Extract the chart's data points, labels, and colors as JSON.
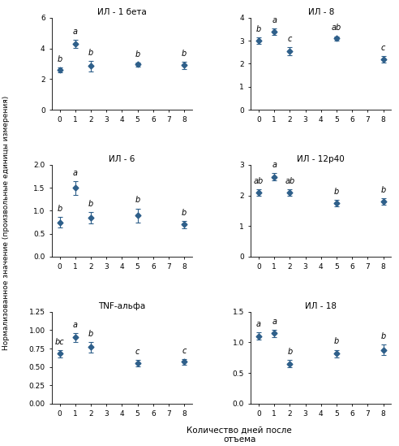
{
  "panels": [
    {
      "title": "ИЛ - 1 бета",
      "x": [
        0,
        1,
        2,
        5,
        8
      ],
      "y": [
        2.6,
        4.3,
        2.85,
        2.95,
        2.9
      ],
      "yerr": [
        0.15,
        0.25,
        0.35,
        0.15,
        0.25
      ],
      "labels": [
        "b",
        "a",
        "b",
        "b",
        "b"
      ],
      "ylim": [
        0,
        6
      ],
      "yticks": [
        0,
        2,
        4,
        6
      ]
    },
    {
      "title": "ИЛ - 8",
      "x": [
        0,
        1,
        2,
        5,
        8
      ],
      "y": [
        3.0,
        3.4,
        2.55,
        3.1,
        2.2
      ],
      "yerr": [
        0.15,
        0.15,
        0.18,
        0.1,
        0.15
      ],
      "labels": [
        "b",
        "a",
        "c",
        "ab",
        "c"
      ],
      "ylim": [
        0,
        4
      ],
      "yticks": [
        0,
        1,
        2,
        3,
        4
      ]
    },
    {
      "title": "ИЛ - 6",
      "x": [
        0,
        1,
        2,
        5,
        8
      ],
      "y": [
        0.75,
        1.5,
        0.85,
        0.9,
        0.7
      ],
      "yerr": [
        0.12,
        0.15,
        0.12,
        0.15,
        0.08
      ],
      "labels": [
        "b",
        "a",
        "b",
        "b",
        "b"
      ],
      "ylim": [
        0,
        2.0
      ],
      "yticks": [
        0,
        0.5,
        1.0,
        1.5,
        2.0
      ]
    },
    {
      "title": "ИЛ - 12р40",
      "x": [
        0,
        1,
        2,
        5,
        8
      ],
      "y": [
        2.1,
        2.6,
        2.1,
        1.75,
        1.8
      ],
      "yerr": [
        0.1,
        0.12,
        0.1,
        0.1,
        0.1
      ],
      "labels": [
        "ab",
        "a",
        "ab",
        "b",
        "b"
      ],
      "ylim": [
        0,
        3
      ],
      "yticks": [
        0,
        1,
        2,
        3
      ]
    },
    {
      "title": "TNF-альфа",
      "x": [
        0,
        1,
        2,
        5,
        8
      ],
      "y": [
        0.68,
        0.9,
        0.77,
        0.55,
        0.57
      ],
      "yerr": [
        0.05,
        0.06,
        0.07,
        0.04,
        0.04
      ],
      "labels": [
        "bc",
        "a",
        "b",
        "c",
        "c"
      ],
      "ylim": [
        0,
        1.25
      ],
      "yticks": [
        0,
        0.25,
        0.5,
        0.75,
        1.0,
        1.25
      ]
    },
    {
      "title": "ИЛ - 18",
      "x": [
        0,
        1,
        2,
        5,
        8
      ],
      "y": [
        1.1,
        1.15,
        0.65,
        0.82,
        0.88
      ],
      "yerr": [
        0.06,
        0.06,
        0.06,
        0.06,
        0.08
      ],
      "labels": [
        "a",
        "a",
        "b",
        "b",
        "b"
      ],
      "ylim": [
        0,
        1.5
      ],
      "yticks": [
        0,
        0.5,
        1.0,
        1.5
      ]
    }
  ],
  "line_color": "#2e5f8a",
  "marker": "D",
  "markersize": 3.5,
  "linewidth": 1.3,
  "xlabel": "Количество дней после\nотъема",
  "ylabel": "Нормализованное значение (произвольные единицы измерения)",
  "xticks": [
    0,
    1,
    2,
    3,
    4,
    5,
    6,
    7,
    8
  ],
  "title_fontsize": 7.5,
  "axis_fontsize": 6.5,
  "annot_fontsize": 7,
  "xlabel_fontsize": 7.5,
  "ylabel_fontsize": 6.5
}
